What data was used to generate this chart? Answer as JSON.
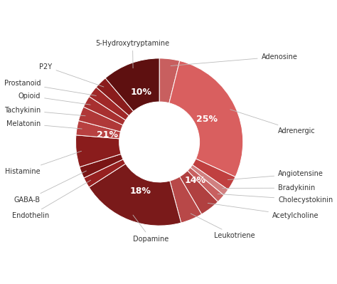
{
  "labels": [
    "Adenosine",
    "Adrenergic",
    "Angiotensine",
    "Bradykinin",
    "Cholecystokinin",
    "Acetylcholine",
    "Leukotriene",
    "Dopamine",
    "Endothelin",
    "GABA-B",
    "Histamine",
    "Melatonin",
    "Tachykinin",
    "Opioid",
    "Prostanoid",
    "P2Y",
    "5-Hydroxytryptamine"
  ],
  "sizes": [
    3.5,
    25,
    2.5,
    1.2,
    1.5,
    3.5,
    3.8,
    18,
    1.8,
    2.0,
    5.5,
    2.5,
    2.5,
    2.0,
    2.0,
    2.2,
    10
  ],
  "colors": [
    "#c85f5f",
    "#d95f5f",
    "#c04040",
    "#d08080",
    "#c86060",
    "#b04040",
    "#b84848",
    "#7a1a1a",
    "#962020",
    "#7a1515",
    "#8a1c1c",
    "#b84040",
    "#b03838",
    "#a83030",
    "#a02828",
    "#8a1c1c",
    "#5e1010"
  ],
  "pct_positions": {
    "Adrenergic_r": 0.65,
    "Dopamine_r": 0.65,
    "fiveHT_r": 0.65,
    "left21_r": 0.65,
    "br14_r": 0.65
  },
  "label_fontsize": 7,
  "pct_fontsize": 9,
  "line_color": "#bbbbbb",
  "line_width": 0.6,
  "text_color": "#333333",
  "bg_color": "#ffffff"
}
